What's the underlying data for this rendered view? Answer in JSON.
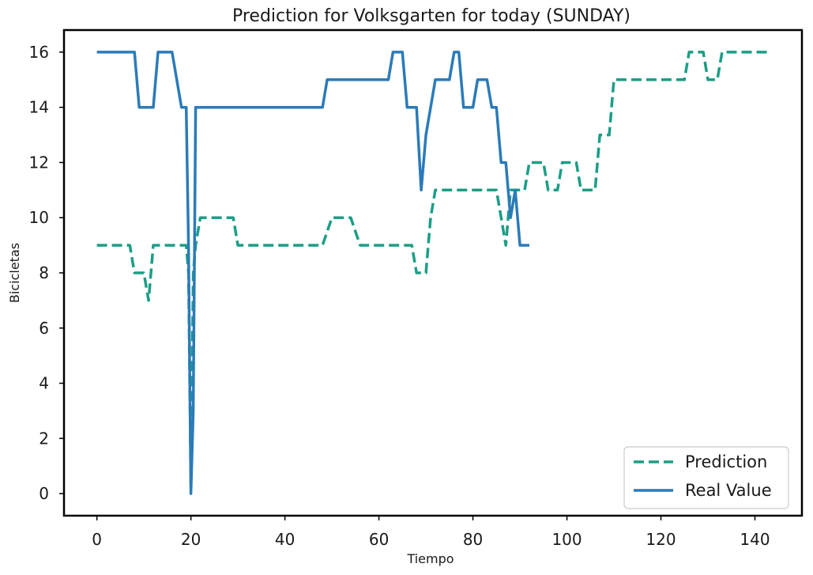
{
  "chart_data": {
    "type": "line",
    "title": "Prediction for Volksgarten for today (SUNDAY)",
    "xlabel": "Tiempo",
    "ylabel": "Bicicletas",
    "xlim": [
      -7,
      150
    ],
    "ylim": [
      -0.8,
      16.8
    ],
    "xticks": [
      0,
      20,
      40,
      60,
      80,
      100,
      120,
      140
    ],
    "yticks": [
      0,
      2,
      4,
      6,
      8,
      10,
      12,
      14,
      16
    ],
    "grid": false,
    "legend_position": "bottom-right",
    "series": [
      {
        "name": "Prediction",
        "style": "dashed",
        "color": "#1b9e85",
        "points": [
          [
            0,
            9
          ],
          [
            7,
            9
          ],
          [
            8,
            8
          ],
          [
            10,
            8
          ],
          [
            11,
            7
          ],
          [
            12,
            9
          ],
          [
            19,
            9
          ],
          [
            19.5,
            8
          ],
          [
            20,
            0.3
          ],
          [
            20.5,
            8
          ],
          [
            21,
            9
          ],
          [
            22,
            10
          ],
          [
            29,
            10
          ],
          [
            30,
            9
          ],
          [
            48,
            9
          ],
          [
            50,
            10
          ],
          [
            54,
            10
          ],
          [
            56,
            9
          ],
          [
            67,
            9
          ],
          [
            68,
            8
          ],
          [
            70,
            8
          ],
          [
            71,
            10
          ],
          [
            72,
            11
          ],
          [
            85,
            11
          ],
          [
            86,
            10
          ],
          [
            87,
            9
          ],
          [
            88,
            11
          ],
          [
            91,
            11
          ],
          [
            92,
            12
          ],
          [
            95,
            12
          ],
          [
            96,
            11
          ],
          [
            98,
            11
          ],
          [
            99,
            12
          ],
          [
            102,
            12
          ],
          [
            103,
            11
          ],
          [
            106,
            11
          ],
          [
            107,
            13
          ],
          [
            109,
            13
          ],
          [
            110,
            15
          ],
          [
            125,
            15
          ],
          [
            126,
            16
          ],
          [
            129,
            16
          ],
          [
            130,
            15
          ],
          [
            132,
            15
          ],
          [
            133,
            16
          ],
          [
            143,
            16
          ]
        ]
      },
      {
        "name": "Real Value",
        "style": "solid",
        "color": "#2b7bb9",
        "points": [
          [
            0,
            16
          ],
          [
            8,
            16
          ],
          [
            9,
            14
          ],
          [
            12,
            14
          ],
          [
            13,
            16
          ],
          [
            16,
            16
          ],
          [
            18,
            14
          ],
          [
            19,
            14
          ],
          [
            19.5,
            9
          ],
          [
            20,
            0
          ],
          [
            20.5,
            3
          ],
          [
            21,
            14
          ],
          [
            48,
            14
          ],
          [
            49,
            15
          ],
          [
            62,
            15
          ],
          [
            63,
            16
          ],
          [
            65,
            16
          ],
          [
            66,
            14
          ],
          [
            68,
            14
          ],
          [
            69,
            11
          ],
          [
            70,
            13
          ],
          [
            72,
            15
          ],
          [
            75,
            15
          ],
          [
            76,
            16
          ],
          [
            77,
            16
          ],
          [
            78,
            14
          ],
          [
            80,
            14
          ],
          [
            81,
            15
          ],
          [
            83,
            15
          ],
          [
            84,
            14
          ],
          [
            85,
            14
          ],
          [
            86,
            12
          ],
          [
            87,
            12
          ],
          [
            88,
            10
          ],
          [
            89,
            11
          ],
          [
            90,
            9
          ],
          [
            92,
            9
          ]
        ]
      }
    ]
  }
}
